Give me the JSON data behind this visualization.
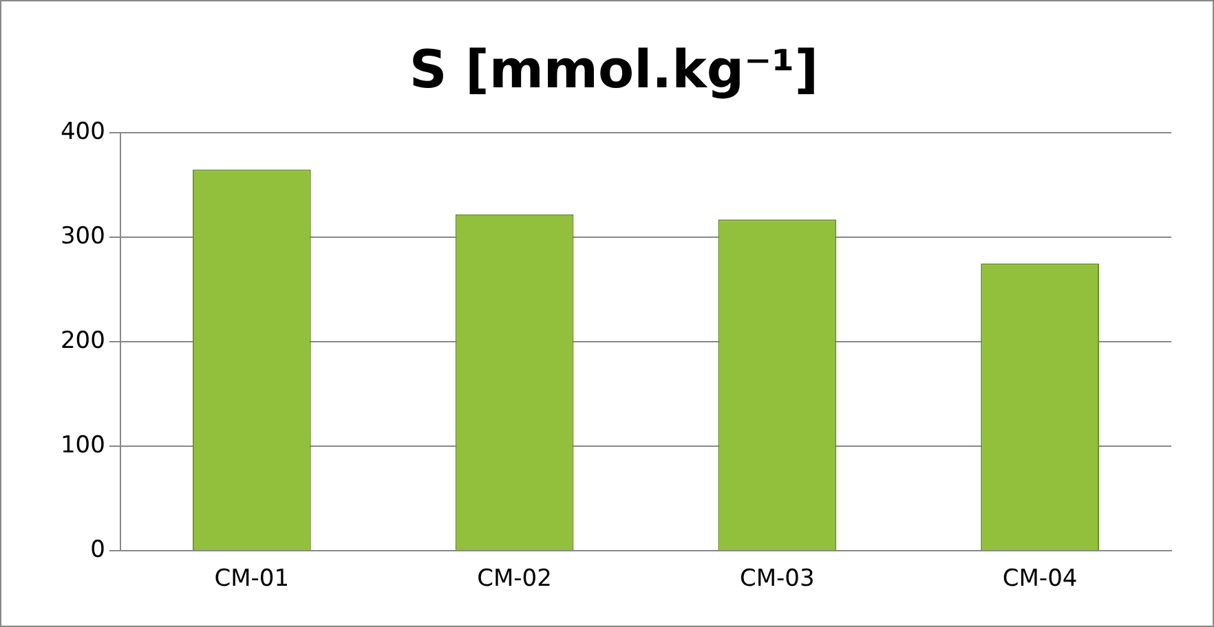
{
  "chart_data": {
    "type": "bar",
    "title": "S [mmol.kg⁻¹]",
    "categories": [
      "CM-01",
      "CM-02",
      "CM-03",
      "CM-04"
    ],
    "values": [
      365,
      322,
      317,
      275
    ],
    "color": "#92c03c",
    "ylim": [
      0,
      400
    ],
    "yticks": [
      0,
      100,
      200,
      300,
      400
    ],
    "grid": "y",
    "legend": false
  }
}
